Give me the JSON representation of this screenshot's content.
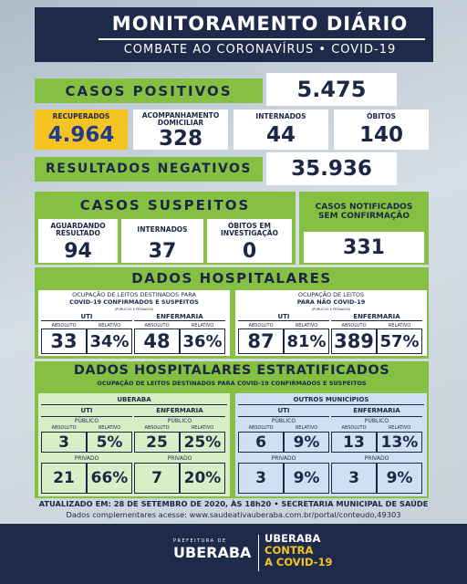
{
  "header": {
    "title": "MONITORAMENTO DIÁRIO",
    "subtitle": "COMBATE AO CORONAVÍRUS • COVID-19"
  },
  "positivos": {
    "label": "CASOS POSITIVOS",
    "value": "5.475"
  },
  "cards": [
    {
      "label": "RECUPERADOS",
      "value": "4.964"
    },
    {
      "label": "ACOMPANHAMENTO DOMICILIAR",
      "value": "328"
    },
    {
      "label": "INTERNADOS",
      "value": "44"
    },
    {
      "label": "ÓBITOS",
      "value": "140"
    }
  ],
  "negativos": {
    "label": "RESULTADOS NEGATIVOS",
    "value": "35.936"
  },
  "suspeitos": {
    "title": "CASOS SUSPEITOS",
    "cards": [
      {
        "label": "AGUARDANDO RESULTADO",
        "value": "94"
      },
      {
        "label": "INTERNADOS",
        "value": "37"
      },
      {
        "label": "ÓBITOS EM INVESTIGAÇÃO",
        "value": "0"
      }
    ]
  },
  "notificados": {
    "label": "CASOS NOTIFICADOS SEM CONFIRMAÇÃO",
    "value": "331"
  },
  "labels": {
    "uti": "UTI",
    "enfermaria": "ENFERMARIA",
    "absoluto": "ABSOLUTO",
    "relativo": "RELATIVO",
    "publico": "PÚBLICO",
    "privado": "PRIVADO"
  },
  "hospitalares": {
    "title": "DADOS HOSPITALARES",
    "panels": [
      {
        "heading": [
          "OCUPAÇÃO DE LEITOS DESTINADOS PARA",
          "COVID-19 CONFIRMADOS E SUSPEITOS"
        ],
        "note": "(PÚBLICOS E PRIVADOS)",
        "uti": [
          "33",
          "34%"
        ],
        "enfermaria": [
          "48",
          "36%"
        ]
      },
      {
        "heading": [
          "OCUPAÇÃO DE LEITOS",
          "PARA NÃO COVID-19"
        ],
        "note": "(PÚBLICOS E PRIVADOS)",
        "uti": [
          "87",
          "81%"
        ],
        "enfermaria": [
          "389",
          "57%"
        ]
      }
    ]
  },
  "estratificados": {
    "title": "DADOS HOSPITALARES ESTRATIFICADOS",
    "subtitle": "OCUPAÇÃO DE LEITOS DESTINADOS PARA COVID-19 CONFIRMADOS E SUSPEITOS",
    "panels": [
      {
        "name": "UBERABA",
        "uti": {
          "publico": [
            "3",
            "5%"
          ],
          "privado": [
            "21",
            "66%"
          ]
        },
        "enfermaria": {
          "publico": [
            "25",
            "25%"
          ],
          "privado": [
            "7",
            "20%"
          ]
        }
      },
      {
        "name": "OUTROS MUNICÍPIOS",
        "uti": {
          "publico": [
            "6",
            "9%"
          ],
          "privado": [
            "3",
            "9%"
          ]
        },
        "enfermaria": {
          "publico": [
            "13",
            "13%"
          ],
          "privado": [
            "3",
            "9%"
          ]
        }
      }
    ]
  },
  "footer": {
    "updated": "ATUALIZADO EM: 28 DE SETEMBRO DE 2020, ÀS 18h20 • SECRETARIA MUNICIPAL DE SAÚDE",
    "link": "Dados complementares acesse: www.saudeativauberaba.com.br/portal/conteudo,49303"
  },
  "brand": {
    "prefeitura": "PREFEITURA DE",
    "city": "UBERABA",
    "campaign": [
      "UBERABA",
      "CONTRA",
      "A COVID-19"
    ]
  }
}
